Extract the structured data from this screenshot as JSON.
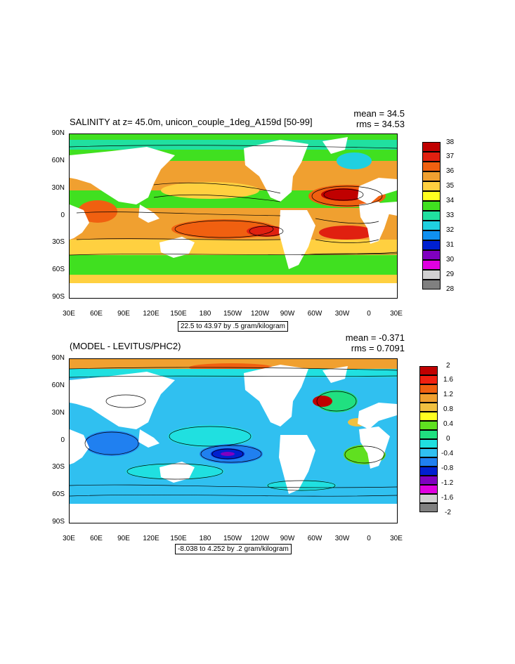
{
  "panels": [
    {
      "title": "SALINITY at z=  45.0m, unicon_couple_1deg_A159d [50-99]",
      "mean_text": "mean = 34.5",
      "rms_text": "rms = 34.53",
      "range_text": "22.5 to 43.97 by .5 gram/kilogram",
      "lat_labels": [
        "90N",
        "60N",
        "30N",
        "0",
        "30S",
        "60S",
        "90S"
      ],
      "lon_labels": [
        "30E",
        "60E",
        "90E",
        "120E",
        "150E",
        "180",
        "150W",
        "120W",
        "90W",
        "60W",
        "30W",
        "0",
        "30E"
      ],
      "legend_labels": [
        "38",
        "37",
        "36",
        "35",
        "34",
        "33",
        "32",
        "31",
        "30",
        "29",
        "28"
      ],
      "legend_colors": [
        "#c00000",
        "#e02010",
        "#f06010",
        "#f0a030",
        "#ffd040",
        "#ffff20",
        "#40e020",
        "#20e0a0",
        "#20d0e0",
        "#1090f0",
        "#0020d0",
        "#8000c0",
        "#e000e0",
        "#d0d0d0",
        "#808080"
      ]
    },
    {
      "title": "(MODEL - LEVITUS/PHC2)",
      "mean_text": "mean = -0.371",
      "rms_text": "rms = 0.7091",
      "range_text": "-8.038 to 4.252 by .2 gram/kilogram",
      "lat_labels": [
        "90N",
        "60N",
        "30N",
        "0",
        "30S",
        "60S",
        "90S"
      ],
      "lon_labels": [
        "30E",
        "60E",
        "90E",
        "120E",
        "150E",
        "180",
        "150W",
        "120W",
        "90W",
        "60W",
        "30W",
        "0",
        "30E"
      ],
      "legend_labels": [
        "2",
        "1.6",
        "1.2",
        "0.8",
        "0.4",
        "0",
        "-0.4",
        "-0.8",
        "-1.2",
        "-1.6",
        "-2"
      ],
      "legend_colors": [
        "#c00000",
        "#f02010",
        "#f06010",
        "#f0a030",
        "#f0c040",
        "#ffff20",
        "#60e020",
        "#20e080",
        "#20e0e0",
        "#30c0f0",
        "#2080f0",
        "#0020d0",
        "#8000c0",
        "#e000e0",
        "#d0d0d0",
        "#808080"
      ]
    }
  ]
}
